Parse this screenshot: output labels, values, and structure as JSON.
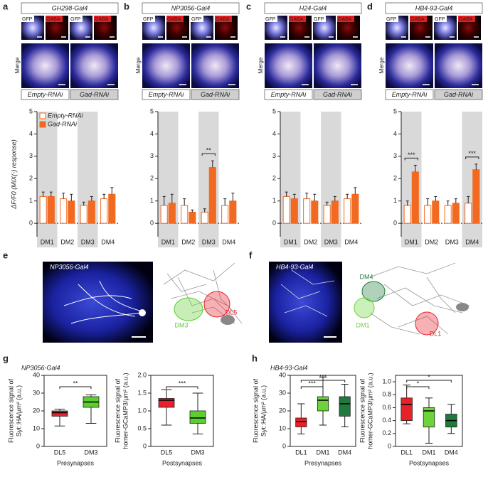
{
  "figure": {
    "image_labels": {
      "gfp": "GFP",
      "gaba": "GABA",
      "merge": "Merge"
    },
    "panels_e_f": [
      {
        "letter": "e",
        "label": "NP3056-Gal4",
        "regions": [
          {
            "name": "DM3",
            "color": "#5ccf2f"
          },
          {
            "name": "DL5",
            "color": "#e8202a"
          }
        ]
      },
      {
        "letter": "f",
        "label": "HB4-93-Gal4",
        "regions": [
          {
            "name": "DM4",
            "color": "#1f7a3c"
          },
          {
            "name": "DM1",
            "color": "#6cd43a"
          },
          {
            "name": "DL1",
            "color": "#e8202a"
          }
        ]
      }
    ]
  },
  "chart_data": [
    {
      "type": "bar",
      "panel": "a",
      "title": "GH298-Gal4",
      "ylabel": "ΔF/F0 (MIX(-) response)",
      "legend": "upper left",
      "categories": [
        "DM1",
        "DM2",
        "DM3",
        "DM4"
      ],
      "shaded": [
        0,
        2
      ],
      "series": [
        {
          "name": "Empty-RNAi",
          "color": "#f26a21",
          "fill": "#ffffff",
          "values": [
            1.2,
            1.1,
            0.8,
            1.1
          ],
          "errors": [
            0.2,
            0.25,
            0.15,
            0.2
          ]
        },
        {
          "name": "Gad-RNAi",
          "color": "#f26a21",
          "fill": "#f26a21",
          "values": [
            1.2,
            1.0,
            1.0,
            1.3
          ],
          "errors": [
            0.2,
            0.3,
            0.2,
            0.3
          ]
        }
      ],
      "ylim": [
        -0.6,
        5
      ],
      "yticks": [
        0,
        1,
        2,
        3,
        4,
        5
      ]
    },
    {
      "type": "bar",
      "panel": "b",
      "title": "NP3056-Gal4",
      "categories": [
        "DM1",
        "DM2",
        "DM3",
        "DM4"
      ],
      "shaded": [
        0,
        2
      ],
      "series": [
        {
          "name": "Empty-RNAi",
          "color": "#f26a21",
          "fill": "#ffffff",
          "values": [
            0.8,
            0.8,
            0.5,
            0.8
          ],
          "errors": [
            0.4,
            0.3,
            0.15,
            0.3
          ]
        },
        {
          "name": "Gad-RNAi",
          "color": "#f26a21",
          "fill": "#f26a21",
          "values": [
            0.9,
            0.5,
            2.5,
            1.0
          ],
          "errors": [
            0.4,
            0.1,
            0.3,
            0.35
          ]
        }
      ],
      "ylim": [
        -0.6,
        5
      ],
      "yticks": [
        0,
        1,
        2,
        3,
        4,
        5
      ],
      "annotations": [
        {
          "text": "**",
          "category": 2
        }
      ]
    },
    {
      "type": "bar",
      "panel": "c",
      "title": "H24-Gal4",
      "categories": [
        "DM1",
        "DM2",
        "DM3",
        "DM4"
      ],
      "shaded": [
        0,
        2
      ],
      "series": [
        {
          "name": "Empty-RNAi",
          "color": "#f26a21",
          "fill": "#ffffff",
          "values": [
            1.2,
            1.1,
            0.8,
            1.1
          ],
          "errors": [
            0.2,
            0.25,
            0.15,
            0.2
          ]
        },
        {
          "name": "Gad-RNAi",
          "color": "#f26a21",
          "fill": "#f26a21",
          "values": [
            1.1,
            1.0,
            1.0,
            1.3
          ],
          "errors": [
            0.2,
            0.3,
            0.2,
            0.3
          ]
        }
      ],
      "ylim": [
        -0.6,
        5
      ],
      "yticks": [
        0,
        1,
        2,
        3,
        4,
        5
      ]
    },
    {
      "type": "bar",
      "panel": "d",
      "title": "HB4-93-Gal4",
      "categories": [
        "DM1",
        "DM2",
        "DM3",
        "DM4"
      ],
      "shaded": [
        0,
        3
      ],
      "series": [
        {
          "name": "Empty-RNAi",
          "color": "#f26a21",
          "fill": "#ffffff",
          "values": [
            0.8,
            0.8,
            0.8,
            0.9
          ],
          "errors": [
            0.2,
            0.3,
            0.2,
            0.3
          ]
        },
        {
          "name": "Gad-RNAi",
          "color": "#f26a21",
          "fill": "#f26a21",
          "values": [
            2.3,
            1.0,
            0.9,
            2.4
          ],
          "errors": [
            0.3,
            0.2,
            0.2,
            0.25
          ]
        }
      ],
      "ylim": [
        -0.6,
        5
      ],
      "yticks": [
        0,
        1,
        2,
        3,
        4,
        5
      ],
      "annotations": [
        {
          "text": "***",
          "category": 0
        },
        {
          "text": "***",
          "category": 3
        }
      ]
    },
    {
      "type": "box",
      "panel": "g",
      "title": "NP3056-Gal4",
      "ylabel": [
        "Fluorescence signal of",
        "Syt::HA/µm² (a.u.)"
      ],
      "xlabel": "Presynapses",
      "categories": [
        "DL5",
        "DM3"
      ],
      "colors": [
        "#e8202a",
        "#5ccf2f"
      ],
      "boxes": [
        {
          "min": 11.5,
          "q1": 17,
          "median": 19,
          "q3": 20,
          "max": 21
        },
        {
          "min": 13,
          "q1": 22,
          "median": 25,
          "q3": 28,
          "max": 29
        }
      ],
      "ylim": [
        0,
        40
      ],
      "yticks": [
        0,
        10,
        20,
        30,
        40
      ],
      "annotations": [
        {
          "text": "**",
          "from": 0,
          "to": 1
        }
      ]
    },
    {
      "type": "box",
      "ylabel": [
        "Fluorescence signal of",
        "homer-GCaMP3/µm² (a.u.)"
      ],
      "xlabel": "Postsynapses",
      "categories": [
        "DL5",
        "DM3"
      ],
      "colors": [
        "#e8202a",
        "#5ccf2f"
      ],
      "boxes": [
        {
          "min": 0.6,
          "q1": 1.1,
          "median": 1.3,
          "q3": 1.35,
          "max": 1.6
        },
        {
          "min": 0.35,
          "q1": 0.65,
          "median": 0.8,
          "q3": 1.0,
          "max": 1.5
        }
      ],
      "ylim": [
        0,
        2
      ],
      "yticks": [
        0,
        {
          "value": 0.5,
          "label": "0.5"
        },
        {
          "value": 1,
          "label": "1.0"
        },
        {
          "value": 1.5,
          "label": "1.5"
        },
        {
          "value": 2,
          "label": "2.0"
        }
      ],
      "annotations": [
        {
          "text": "***",
          "from": 0,
          "to": 1
        }
      ]
    },
    {
      "type": "box",
      "panel": "h",
      "title": "HB4-93-Gal4",
      "ylabel": [
        "Fluorescence signal of",
        "Syt::HA/µm² (a.u.)"
      ],
      "xlabel": "Presynapses",
      "categories": [
        "DL1",
        "DM1",
        "DM4"
      ],
      "colors": [
        "#e8202a",
        "#6cd43a",
        "#1f7a3c"
      ],
      "boxes": [
        {
          "min": 7,
          "q1": 11,
          "median": 14,
          "q3": 16,
          "max": 24
        },
        {
          "min": 12,
          "q1": 20,
          "median": 26,
          "q3": 28,
          "max": 39
        },
        {
          "min": 11,
          "q1": 17,
          "median": 24,
          "q3": 28,
          "max": 35
        }
      ],
      "ylim": [
        0,
        40
      ],
      "yticks": [
        0,
        10,
        20,
        30,
        40
      ],
      "annotations": [
        {
          "text": "***",
          "from": 0,
          "to": 1
        },
        {
          "text": "***",
          "from": 0,
          "to": 2
        }
      ]
    },
    {
      "type": "box",
      "ylabel": [
        "Fluorescence signal of",
        "homer-GCaMP3/µm² (a.u.)"
      ],
      "xlabel": "Postsynapses",
      "categories": [
        "DL1",
        "DM1",
        "DM4"
      ],
      "colors": [
        "#e8202a",
        "#6cd43a",
        "#1f7a3c"
      ],
      "boxes": [
        {
          "min": 0.35,
          "q1": 0.4,
          "median": 0.65,
          "q3": 0.75,
          "max": 0.95
        },
        {
          "min": 0.05,
          "q1": 0.3,
          "median": 0.55,
          "q3": 0.6,
          "max": 0.75
        },
        {
          "min": 0.2,
          "q1": 0.3,
          "median": 0.4,
          "q3": 0.5,
          "max": 0.65
        }
      ],
      "ylim": [
        0,
        1.1
      ],
      "yticks": [
        0,
        0.2,
        0.4,
        0.6,
        0.8,
        {
          "value": 1,
          "label": "1.0"
        }
      ],
      "annotations": [
        {
          "text": "*",
          "from": 0,
          "to": 1
        },
        {
          "text": "*",
          "from": 0,
          "to": 2
        }
      ]
    }
  ]
}
